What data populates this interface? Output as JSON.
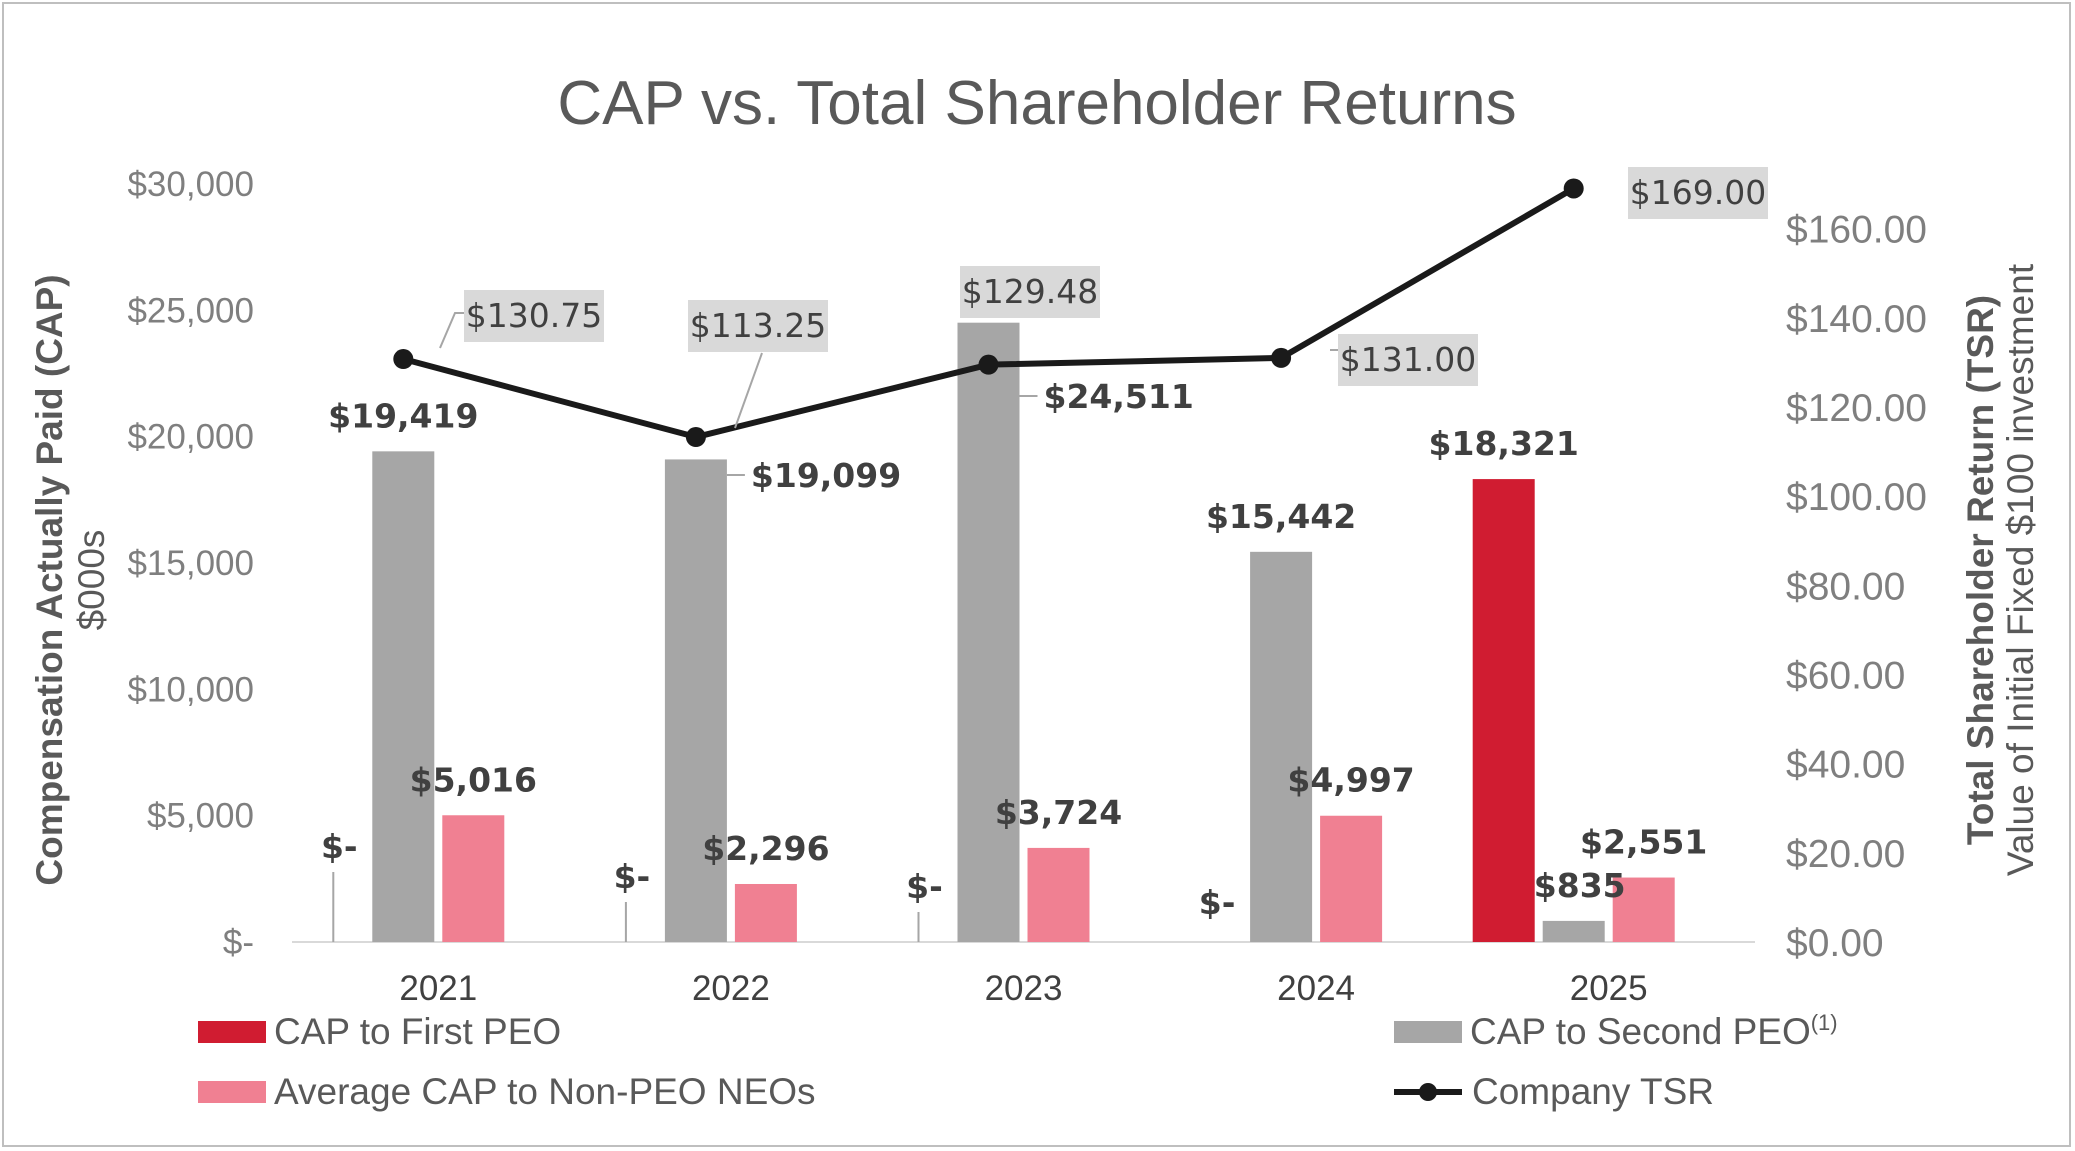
{
  "chart_data": {
    "type": "bar",
    "title": "CAP vs. Total Shareholder Returns",
    "categories": [
      "2021",
      "2022",
      "2023",
      "2024",
      "2025"
    ],
    "y_left": {
      "label_line1": "Compensation Actually Paid (CAP)",
      "label_line2": "$000s",
      "ylim": [
        0,
        30000
      ],
      "ticks": [
        0,
        5000,
        10000,
        15000,
        20000,
        25000,
        30000
      ],
      "tick_labels": [
        "$-",
        "$5,000",
        "$10,000",
        "$15,000",
        "$20,000",
        "$25,000",
        "$30,000"
      ]
    },
    "y_right": {
      "label_line1": "Total Shareholder Return (TSR)",
      "label_line2": "Value of Initial Fixed $100 investment",
      "ylim": [
        0,
        170
      ],
      "ticks": [
        0,
        20,
        40,
        60,
        80,
        100,
        120,
        140,
        160
      ],
      "tick_labels": [
        "$0.00",
        "$20.00",
        "$40.00",
        "$60.00",
        "$80.00",
        "$100.00",
        "$120.00",
        "$140.00",
        "$160.00"
      ]
    },
    "series": [
      {
        "name": "CAP to First PEO",
        "axis": "left",
        "color": "#d01c31",
        "values": [
          0,
          0,
          0,
          0,
          18321
        ],
        "labels": [
          "$-",
          "$-",
          "$-",
          "$-",
          "$18,321"
        ]
      },
      {
        "name": "CAP to Second PEO",
        "name_superscript": "(1)",
        "axis": "left",
        "color": "#a6a6a6",
        "values": [
          19419,
          19099,
          24511,
          15442,
          835
        ],
        "labels": [
          "$19,419",
          "$19,099",
          "$24,511",
          "$15,442",
          "$835"
        ]
      },
      {
        "name": "Average CAP to Non-PEO NEOs",
        "axis": "left",
        "color": "#f08092",
        "values": [
          5016,
          2296,
          3724,
          4997,
          2551
        ],
        "labels": [
          "$5,016",
          "$2,296",
          "$3,724",
          "$4,997",
          "$2,551"
        ]
      },
      {
        "name": "Company TSR",
        "type": "line",
        "axis": "right",
        "color": "#1a1a1a",
        "values": [
          130.75,
          113.25,
          129.48,
          131.0,
          169.0
        ],
        "labels": [
          "$130.75",
          "$113.25",
          "$129.48",
          "$131.00",
          "$169.00"
        ]
      }
    ],
    "legend": "bottom",
    "grid": false
  }
}
